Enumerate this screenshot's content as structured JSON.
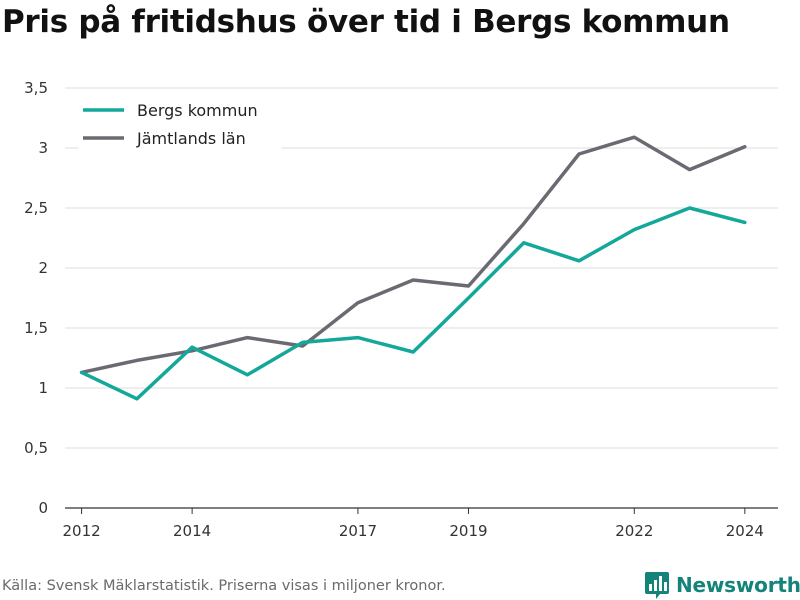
{
  "title": "Pris på fritidshus över tid i Bergs kommun",
  "source": "Källa: Svensk Mäklarstatistik. Priserna visas i miljoner kronor.",
  "brand": {
    "name": "Newsworthy",
    "icon": "newsworthy-logo-icon",
    "color": "#14847a"
  },
  "chart_data": {
    "type": "line",
    "title": "Pris på fritidshus över tid i Bergs kommun",
    "xlabel": "",
    "ylabel": "",
    "x": [
      2012,
      2013,
      2014,
      2015,
      2016,
      2017,
      2018,
      2019,
      2020,
      2021,
      2022,
      2023,
      2024
    ],
    "x_ticks": [
      2012,
      2014,
      2017,
      2019,
      2022,
      2024
    ],
    "y_ticks": [
      0,
      0.5,
      1,
      1.5,
      2,
      2.5,
      3,
      3.5
    ],
    "y_tick_labels": [
      "0",
      "0,5",
      "1",
      "1,5",
      "2",
      "2,5",
      "3",
      "3,5"
    ],
    "xlim": [
      2011.7,
      2024.6
    ],
    "ylim": [
      0,
      3.5
    ],
    "grid": true,
    "legend_position": "top-left",
    "series": [
      {
        "name": "Bergs kommun",
        "color": "#14a89a",
        "values": [
          1.13,
          0.91,
          1.34,
          1.11,
          1.38,
          1.42,
          1.3,
          1.75,
          2.21,
          2.06,
          2.32,
          2.5,
          2.38
        ]
      },
      {
        "name": "Jämtlands län",
        "color": "#6b6a72",
        "values": [
          1.13,
          1.23,
          1.31,
          1.42,
          1.35,
          1.71,
          1.9,
          1.85,
          2.37,
          2.95,
          3.09,
          2.82,
          3.01
        ]
      }
    ]
  }
}
